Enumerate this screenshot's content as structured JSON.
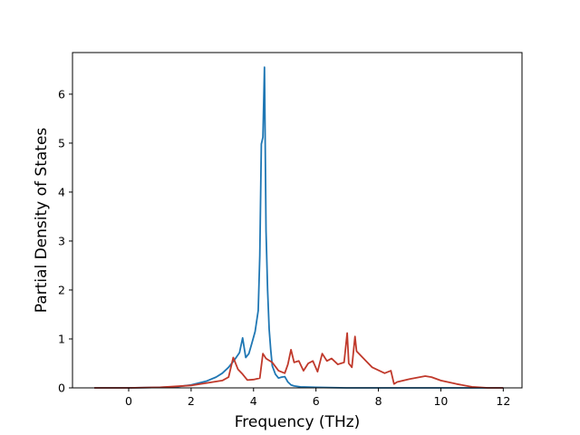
{
  "chart_data": {
    "type": "line",
    "title": "",
    "xlabel": "Frequency (THz)",
    "ylabel": "Partial Density of States",
    "xlim": [
      -1.8,
      12.6
    ],
    "ylim": [
      0,
      6.85
    ],
    "xticks": [
      0,
      2,
      4,
      6,
      8,
      10,
      12
    ],
    "xtick_labels": [
      "0",
      "2",
      "4",
      "6",
      "8",
      "10",
      "12"
    ],
    "yticks": [
      0,
      1,
      2,
      3,
      4,
      5,
      6
    ],
    "ytick_labels": [
      "0",
      "1",
      "2",
      "3",
      "4",
      "5",
      "6"
    ],
    "grid": false,
    "legend": "none",
    "series": [
      {
        "color": "#1f77b4",
        "x": [
          -1.1,
          0.0,
          1.0,
          1.5,
          2.0,
          2.5,
          2.8,
          3.0,
          3.2,
          3.4,
          3.55,
          3.65,
          3.75,
          3.85,
          3.95,
          4.05,
          4.15,
          4.2,
          4.25,
          4.3,
          4.35,
          4.4,
          4.45,
          4.5,
          4.55,
          4.6,
          4.7,
          4.8,
          4.9,
          5.0,
          5.1,
          5.2,
          5.3,
          5.5,
          6.0,
          7.0,
          8.0,
          10.0,
          12.0
        ],
        "y": [
          0.0,
          0.0,
          0.01,
          0.02,
          0.06,
          0.14,
          0.22,
          0.3,
          0.42,
          0.58,
          0.72,
          1.02,
          0.62,
          0.7,
          0.92,
          1.15,
          1.58,
          2.7,
          4.98,
          5.12,
          6.55,
          3.2,
          2.0,
          1.2,
          0.78,
          0.45,
          0.28,
          0.2,
          0.22,
          0.23,
          0.12,
          0.06,
          0.04,
          0.02,
          0.01,
          0.0,
          0.0,
          0.0,
          0.0
        ]
      },
      {
        "color": "#c0392b",
        "x": [
          -1.1,
          0.0,
          1.0,
          2.0,
          2.5,
          3.0,
          3.2,
          3.35,
          3.5,
          3.65,
          3.8,
          4.0,
          4.2,
          4.3,
          4.4,
          4.6,
          4.8,
          5.0,
          5.1,
          5.2,
          5.3,
          5.45,
          5.6,
          5.75,
          5.9,
          6.05,
          6.2,
          6.35,
          6.5,
          6.7,
          6.9,
          7.0,
          7.05,
          7.15,
          7.25,
          7.3,
          7.45,
          7.6,
          7.8,
          8.0,
          8.2,
          8.4,
          8.5,
          8.6,
          9.0,
          9.5,
          9.7,
          10.0,
          10.5,
          11.0,
          11.5,
          12.0
        ],
        "y": [
          0.0,
          0.0,
          0.01,
          0.05,
          0.1,
          0.15,
          0.22,
          0.62,
          0.38,
          0.28,
          0.16,
          0.17,
          0.2,
          0.7,
          0.6,
          0.52,
          0.35,
          0.3,
          0.48,
          0.78,
          0.52,
          0.55,
          0.35,
          0.5,
          0.55,
          0.33,
          0.7,
          0.55,
          0.6,
          0.48,
          0.52,
          1.12,
          0.5,
          0.42,
          1.05,
          0.75,
          0.65,
          0.55,
          0.42,
          0.36,
          0.3,
          0.35,
          0.08,
          0.12,
          0.18,
          0.24,
          0.22,
          0.15,
          0.08,
          0.02,
          0.0,
          0.0
        ]
      }
    ]
  }
}
